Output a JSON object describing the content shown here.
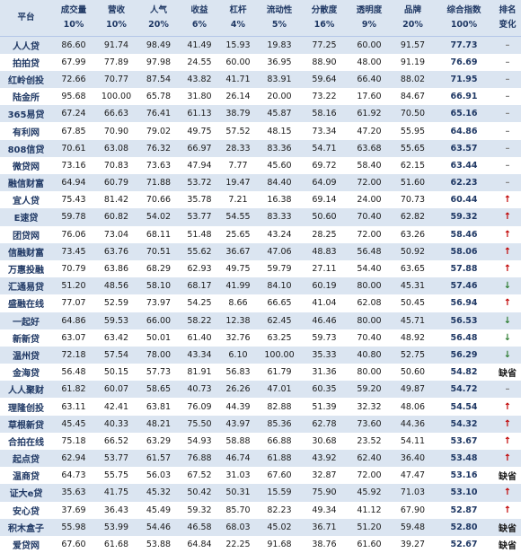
{
  "headers": [
    {
      "name": "平台",
      "weight": ""
    },
    {
      "name": "成交量",
      "weight": "10%"
    },
    {
      "name": "营收",
      "weight": "10%"
    },
    {
      "name": "人气",
      "weight": "20%"
    },
    {
      "name": "收益",
      "weight": "6%"
    },
    {
      "name": "杠杆",
      "weight": "4%"
    },
    {
      "name": "流动性",
      "weight": "5%"
    },
    {
      "name": "分散度",
      "weight": "16%"
    },
    {
      "name": "透明度",
      "weight": "9%"
    },
    {
      "name": "品牌",
      "weight": "20%"
    },
    {
      "name": "综合指数",
      "weight": "100%"
    },
    {
      "name": "排名",
      "weight": "变化"
    }
  ],
  "colors": {
    "up": "#c00000",
    "down": "#2e7d32",
    "same": "#888888",
    "header_bg": "#dbe5f1"
  },
  "rows": [
    {
      "platform": "人人贷",
      "values": [
        "86.60",
        "91.74",
        "98.49",
        "41.49",
        "15.93",
        "19.83",
        "77.25",
        "60.00",
        "91.57"
      ],
      "score": "77.73",
      "change": "–",
      "change_type": "same"
    },
    {
      "platform": "拍拍贷",
      "values": [
        "67.99",
        "77.89",
        "97.98",
        "24.55",
        "60.00",
        "36.95",
        "88.90",
        "48.00",
        "91.19"
      ],
      "score": "76.69",
      "change": "–",
      "change_type": "same"
    },
    {
      "platform": "红岭创投",
      "values": [
        "72.66",
        "70.77",
        "87.54",
        "43.82",
        "41.71",
        "83.91",
        "59.64",
        "66.40",
        "88.02"
      ],
      "score": "71.95",
      "change": "–",
      "change_type": "same"
    },
    {
      "platform": "陆金所",
      "values": [
        "95.68",
        "100.00",
        "65.78",
        "31.80",
        "26.14",
        "20.00",
        "73.22",
        "17.60",
        "84.67"
      ],
      "score": "66.91",
      "change": "–",
      "change_type": "same"
    },
    {
      "platform": "365易贷",
      "values": [
        "67.24",
        "66.63",
        "76.41",
        "61.13",
        "38.79",
        "45.87",
        "58.16",
        "61.92",
        "70.50"
      ],
      "score": "65.16",
      "change": "–",
      "change_type": "same"
    },
    {
      "platform": "有利网",
      "values": [
        "67.85",
        "70.90",
        "79.02",
        "49.75",
        "57.52",
        "48.15",
        "73.34",
        "47.20",
        "55.95"
      ],
      "score": "64.86",
      "change": "–",
      "change_type": "same"
    },
    {
      "platform": "808信贷",
      "values": [
        "70.61",
        "63.08",
        "76.32",
        "66.97",
        "28.33",
        "83.36",
        "54.71",
        "63.68",
        "55.65"
      ],
      "score": "63.57",
      "change": "–",
      "change_type": "same"
    },
    {
      "platform": "微贷网",
      "values": [
        "73.16",
        "70.83",
        "73.63",
        "47.94",
        "7.77",
        "45.60",
        "69.72",
        "58.40",
        "62.15"
      ],
      "score": "63.44",
      "change": "–",
      "change_type": "same"
    },
    {
      "platform": "融信财富",
      "values": [
        "64.94",
        "60.79",
        "71.88",
        "53.72",
        "19.47",
        "84.40",
        "64.09",
        "72.00",
        "51.60"
      ],
      "score": "62.23",
      "change": "–",
      "change_type": "same"
    },
    {
      "platform": "宜人贷",
      "values": [
        "75.43",
        "81.42",
        "70.66",
        "35.78",
        "7.21",
        "16.38",
        "69.14",
        "24.00",
        "70.73"
      ],
      "score": "60.44",
      "change": "↑",
      "change_type": "up"
    },
    {
      "platform": "E速贷",
      "values": [
        "59.78",
        "60.82",
        "54.02",
        "53.77",
        "54.55",
        "83.33",
        "50.60",
        "70.40",
        "62.82"
      ],
      "score": "59.32",
      "change": "↑",
      "change_type": "up"
    },
    {
      "platform": "团贷网",
      "values": [
        "76.06",
        "73.04",
        "68.11",
        "51.48",
        "25.65",
        "43.24",
        "28.25",
        "72.00",
        "63.26"
      ],
      "score": "58.46",
      "change": "↑",
      "change_type": "up"
    },
    {
      "platform": "信融财富",
      "values": [
        "73.45",
        "63.76",
        "70.51",
        "55.62",
        "36.67",
        "47.06",
        "48.83",
        "56.48",
        "50.92"
      ],
      "score": "58.06",
      "change": "↑",
      "change_type": "up"
    },
    {
      "platform": "万惠投融",
      "values": [
        "70.79",
        "63.86",
        "68.29",
        "62.93",
        "49.75",
        "59.79",
        "27.11",
        "54.40",
        "63.65"
      ],
      "score": "57.88",
      "change": "↑",
      "change_type": "up"
    },
    {
      "platform": "汇通易贷",
      "values": [
        "51.20",
        "48.56",
        "58.10",
        "68.17",
        "41.99",
        "84.10",
        "60.19",
        "80.00",
        "45.31"
      ],
      "score": "57.46",
      "change": "↓",
      "change_type": "down"
    },
    {
      "platform": "盛融在线",
      "values": [
        "77.07",
        "52.59",
        "73.97",
        "54.25",
        "8.66",
        "66.65",
        "41.04",
        "62.08",
        "50.45"
      ],
      "score": "56.94",
      "change": "↑",
      "change_type": "up"
    },
    {
      "platform": "一起好",
      "values": [
        "64.86",
        "59.53",
        "66.00",
        "58.22",
        "12.38",
        "62.45",
        "46.46",
        "80.00",
        "45.71"
      ],
      "score": "56.53",
      "change": "↓",
      "change_type": "down"
    },
    {
      "platform": "新新贷",
      "values": [
        "63.07",
        "63.42",
        "50.01",
        "61.40",
        "32.76",
        "63.25",
        "59.73",
        "70.40",
        "48.92"
      ],
      "score": "56.48",
      "change": "↓",
      "change_type": "down"
    },
    {
      "platform": "温州贷",
      "values": [
        "72.18",
        "57.54",
        "78.00",
        "43.34",
        "6.10",
        "100.00",
        "35.33",
        "40.80",
        "52.75"
      ],
      "score": "56.29",
      "change": "↓",
      "change_type": "down"
    },
    {
      "platform": "金海贷",
      "values": [
        "56.48",
        "50.15",
        "57.73",
        "81.91",
        "56.83",
        "61.79",
        "31.36",
        "80.00",
        "50.60"
      ],
      "score": "54.82",
      "change": "缺省",
      "change_type": "miss"
    },
    {
      "platform": "人人聚财",
      "values": [
        "61.82",
        "60.07",
        "58.65",
        "40.73",
        "26.26",
        "47.01",
        "60.35",
        "59.20",
        "49.87"
      ],
      "score": "54.72",
      "change": "–",
      "change_type": "same"
    },
    {
      "platform": "理隆创投",
      "values": [
        "63.11",
        "42.41",
        "63.81",
        "76.09",
        "44.39",
        "82.88",
        "51.39",
        "32.32",
        "48.06"
      ],
      "score": "54.54",
      "change": "↑",
      "change_type": "up"
    },
    {
      "platform": "草根新贷",
      "values": [
        "45.45",
        "40.33",
        "48.21",
        "75.50",
        "43.97",
        "85.36",
        "62.78",
        "73.60",
        "44.36"
      ],
      "score": "54.32",
      "change": "↑",
      "change_type": "up"
    },
    {
      "platform": "合拍在线",
      "values": [
        "75.18",
        "66.52",
        "63.29",
        "54.93",
        "58.88",
        "66.88",
        "30.68",
        "23.52",
        "54.11"
      ],
      "score": "53.67",
      "change": "↑",
      "change_type": "up"
    },
    {
      "platform": "起点贷",
      "values": [
        "62.94",
        "53.77",
        "61.57",
        "76.88",
        "46.74",
        "61.88",
        "43.92",
        "62.40",
        "36.40"
      ],
      "score": "53.48",
      "change": "↑",
      "change_type": "up"
    },
    {
      "platform": "温商贷",
      "values": [
        "64.73",
        "55.75",
        "56.03",
        "67.52",
        "31.03",
        "67.60",
        "32.87",
        "72.00",
        "47.47"
      ],
      "score": "53.16",
      "change": "缺省",
      "change_type": "miss"
    },
    {
      "platform": "证大e贷",
      "values": [
        "35.63",
        "41.75",
        "45.32",
        "50.42",
        "50.31",
        "15.59",
        "75.90",
        "45.92",
        "71.03"
      ],
      "score": "53.10",
      "change": "↑",
      "change_type": "up"
    },
    {
      "platform": "安心贷",
      "values": [
        "37.69",
        "36.43",
        "45.49",
        "59.32",
        "85.70",
        "82.23",
        "49.34",
        "41.12",
        "67.90"
      ],
      "score": "52.87",
      "change": "↑",
      "change_type": "up"
    },
    {
      "platform": "积木盒子",
      "values": [
        "55.98",
        "53.99",
        "54.46",
        "46.58",
        "68.03",
        "45.02",
        "36.71",
        "51.20",
        "59.48"
      ],
      "score": "52.80",
      "change": "缺省",
      "change_type": "miss"
    },
    {
      "platform": "爱贷网",
      "values": [
        "67.60",
        "61.68",
        "53.88",
        "64.84",
        "22.25",
        "91.68",
        "38.76",
        "61.60",
        "39.27"
      ],
      "score": "52.67",
      "change": "缺省",
      "change_type": "miss"
    }
  ]
}
